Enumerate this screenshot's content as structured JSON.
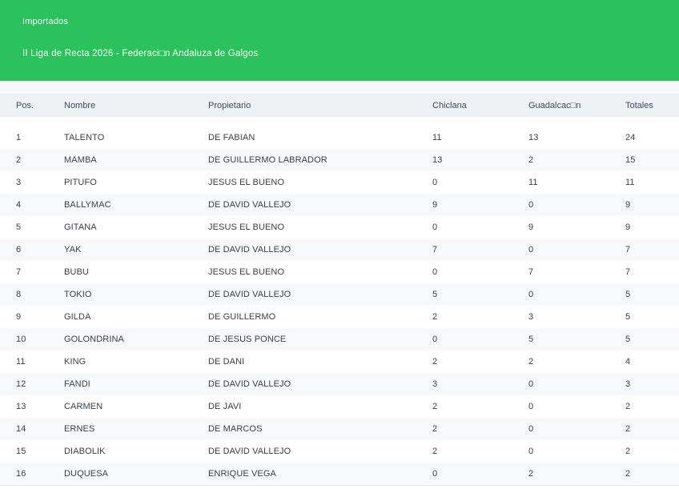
{
  "header": {
    "section_label": "Importados",
    "title": "II Liga de Recta 2026 - Federaci□n Andaluza de Galgos",
    "background_color": "#2bc15c",
    "text_color": "#ffffff"
  },
  "table": {
    "columns": [
      "Pos.",
      "Nombre",
      "Propietario",
      "Chiclana",
      "Guadalcac□n",
      "Totales"
    ],
    "rows": [
      [
        "1",
        "TALENTO",
        "DE FABIAN",
        "11",
        "13",
        "24"
      ],
      [
        "2",
        "MAMBA",
        "DE GUILLERMO LABRADOR",
        "13",
        "2",
        "15"
      ],
      [
        "3",
        "PITUFO",
        "JESUS EL BUENO",
        "0",
        "11",
        "11"
      ],
      [
        "4",
        "BALLYMAC",
        "DE DAVID VALLEJO",
        "9",
        "0",
        "9"
      ],
      [
        "5",
        "GITANA",
        "JESUS EL BUENO",
        "0",
        "9",
        "9"
      ],
      [
        "6",
        "YAK",
        "DE DAVID VALLEJO",
        "7",
        "0",
        "7"
      ],
      [
        "7",
        "BUBU",
        "JESUS EL BUENO",
        "0",
        "7",
        "7"
      ],
      [
        "8",
        "TOKIO",
        "DE DAVID VALLEJO",
        "5",
        "0",
        "5"
      ],
      [
        "9",
        "GILDA",
        "DE GUILLERMO",
        "2",
        "3",
        "5"
      ],
      [
        "10",
        "GOLONDRINA",
        "DE JESUS PONCE",
        "0",
        "5",
        "5"
      ],
      [
        "11",
        "KING",
        "DE DANI",
        "2",
        "2",
        "4"
      ],
      [
        "12",
        "FANDI",
        "DE DAVID VALLEJO",
        "3",
        "0",
        "3"
      ],
      [
        "13",
        "CARMEN",
        "DE JAVI",
        "2",
        "0",
        "2"
      ],
      [
        "14",
        "ERNES",
        "DE MARCOS",
        "2",
        "0",
        "2"
      ],
      [
        "15",
        "DIABOLIK",
        "DE DAVID VALLEJO",
        "2",
        "0",
        "2"
      ],
      [
        "16",
        "DUQUESA",
        "ENRIQUE VEGA",
        "0",
        "2",
        "2"
      ]
    ]
  }
}
